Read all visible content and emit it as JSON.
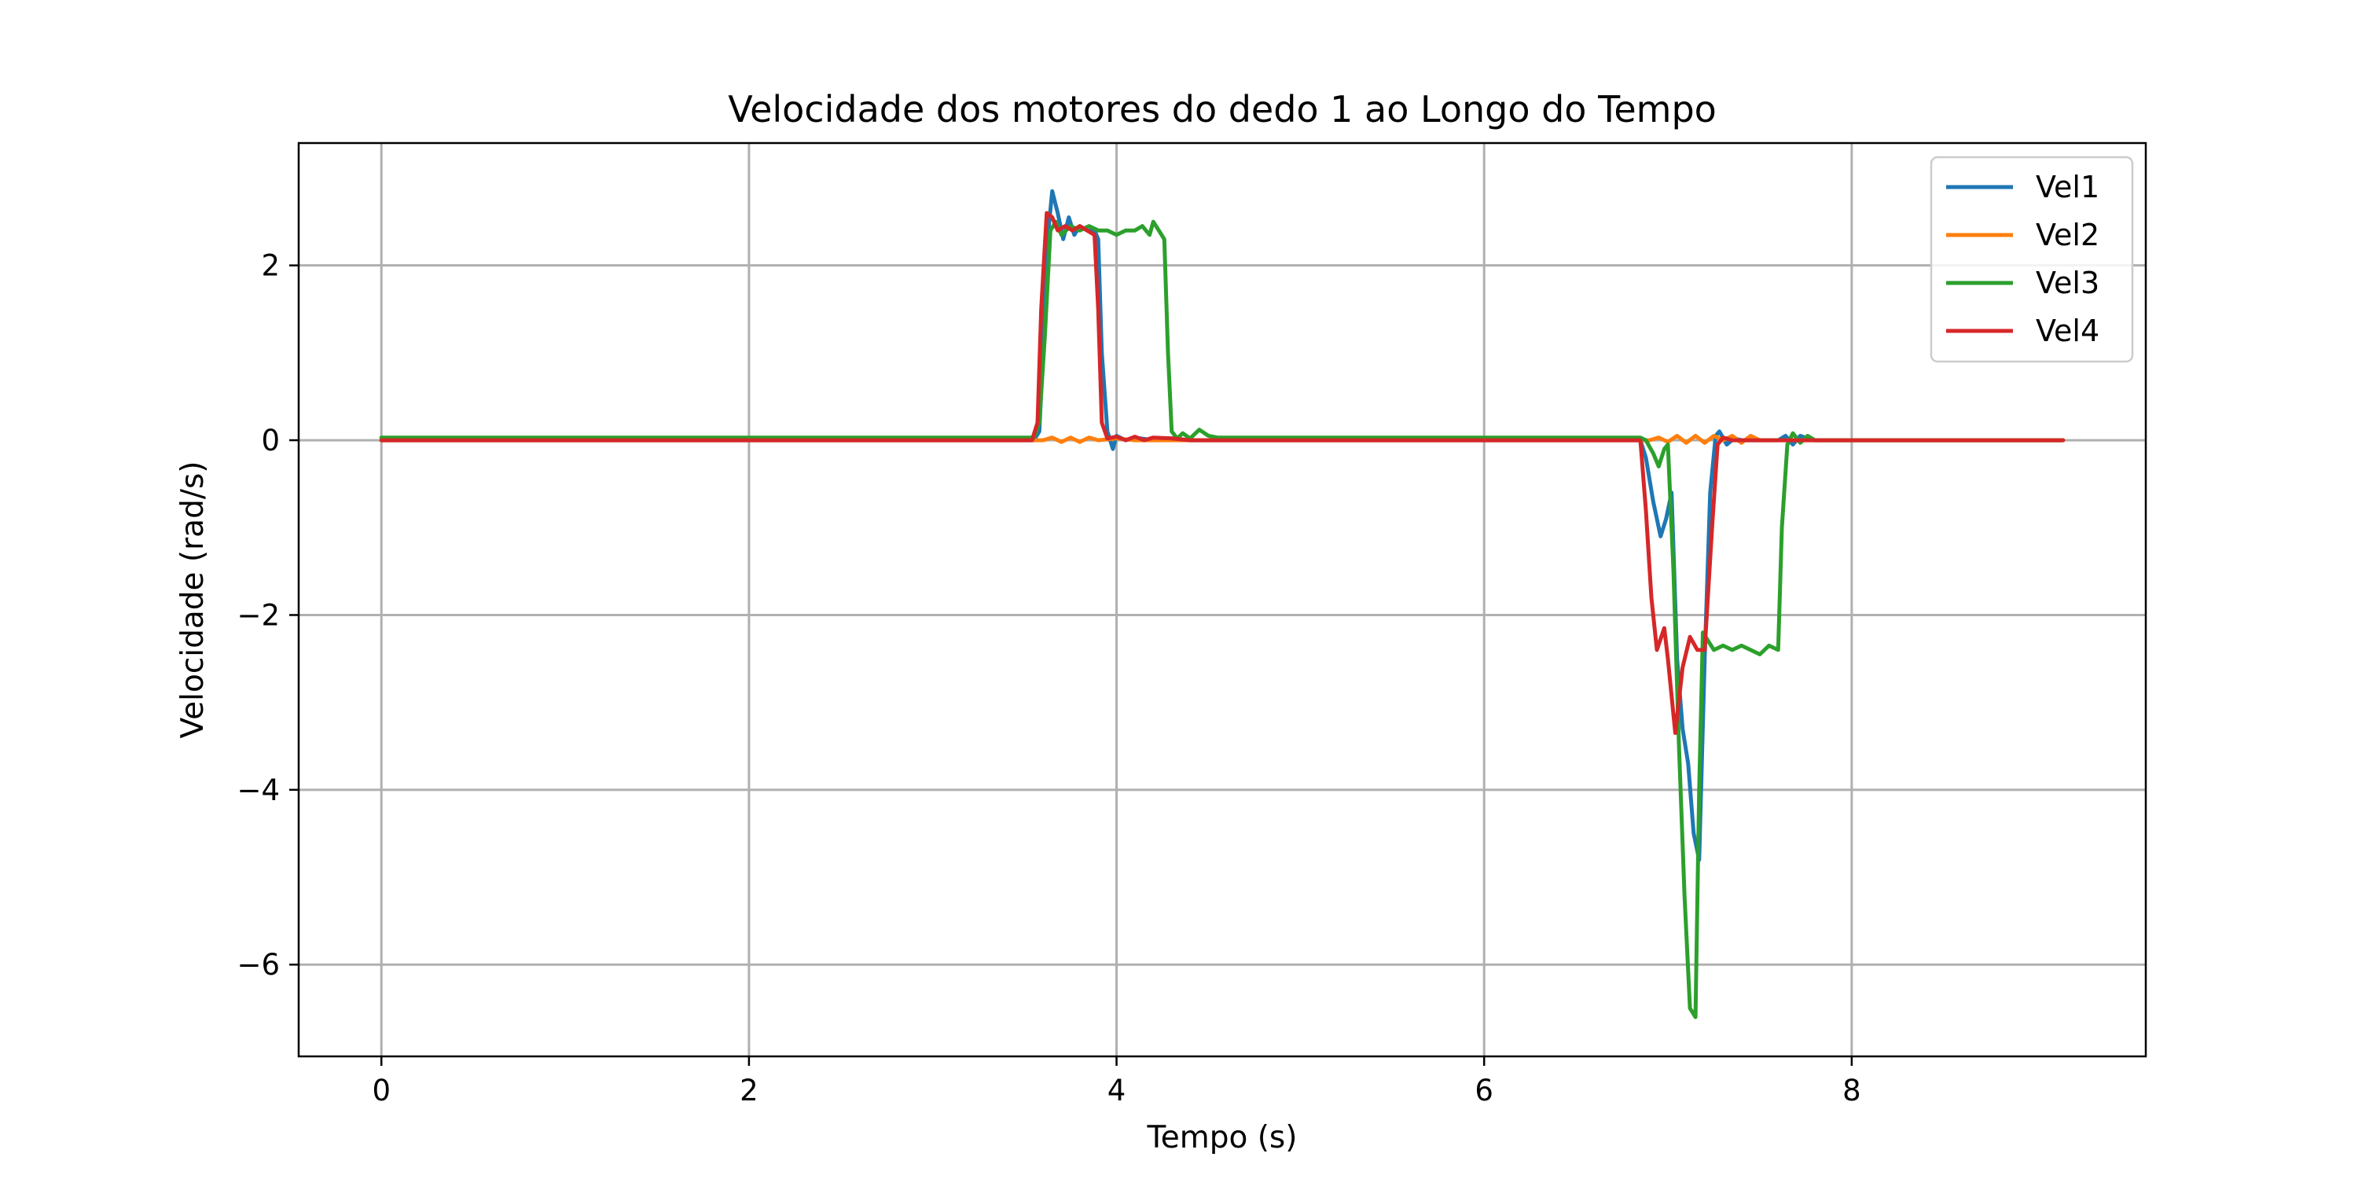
{
  "chart_data": {
    "type": "line",
    "title": "Velocidade dos motores do dedo 1 ao Longo do Tempo",
    "xlabel": "Tempo (s)",
    "ylabel": "Velocidade (rad/s)",
    "xlim": [
      -0.45,
      9.6
    ],
    "ylim": [
      -7.05,
      3.4
    ],
    "xticks": [
      0,
      2,
      4,
      6,
      8
    ],
    "yticks": [
      2,
      0,
      -2,
      -4,
      -6
    ],
    "xtick_labels": [
      "0",
      "2",
      "4",
      "6",
      "8"
    ],
    "ytick_labels": [
      "2",
      "0",
      "−2",
      "−4",
      "−6"
    ],
    "grid": true,
    "legend_position": "top-right",
    "series": [
      {
        "name": "Vel1",
        "color": "#1f77b4",
        "points": [
          [
            0,
            0
          ],
          [
            3.55,
            0
          ],
          [
            3.58,
            0.1
          ],
          [
            3.6,
            1.0
          ],
          [
            3.62,
            2.2
          ],
          [
            3.65,
            2.85
          ],
          [
            3.68,
            2.6
          ],
          [
            3.71,
            2.3
          ],
          [
            3.74,
            2.55
          ],
          [
            3.77,
            2.35
          ],
          [
            3.8,
            2.45
          ],
          [
            3.84,
            2.4
          ],
          [
            3.88,
            2.4
          ],
          [
            3.9,
            2.3
          ],
          [
            3.92,
            1.0
          ],
          [
            3.95,
            0.1
          ],
          [
            3.98,
            -0.1
          ],
          [
            4.0,
            0.05
          ],
          [
            4.05,
            0
          ],
          [
            4.1,
            0.03
          ],
          [
            4.2,
            0
          ],
          [
            4.3,
            0.02
          ],
          [
            4.4,
            0
          ],
          [
            6.85,
            0
          ],
          [
            6.88,
            -0.2
          ],
          [
            6.92,
            -0.7
          ],
          [
            6.96,
            -1.1
          ],
          [
            6.99,
            -0.9
          ],
          [
            7.02,
            -0.6
          ],
          [
            7.05,
            -2.5
          ],
          [
            7.08,
            -3.3
          ],
          [
            7.11,
            -3.7
          ],
          [
            7.14,
            -4.5
          ],
          [
            7.17,
            -4.8
          ],
          [
            7.2,
            -2.5
          ],
          [
            7.23,
            -0.6
          ],
          [
            7.26,
            0.05
          ],
          [
            7.28,
            0.1
          ],
          [
            7.32,
            -0.05
          ],
          [
            7.36,
            0.02
          ],
          [
            7.4,
            0
          ],
          [
            7.6,
            0
          ],
          [
            7.64,
            0.05
          ],
          [
            7.68,
            -0.05
          ],
          [
            7.72,
            0.05
          ],
          [
            7.76,
            0.02
          ],
          [
            7.8,
            0
          ],
          [
            9.15,
            0
          ]
        ]
      },
      {
        "name": "Vel2",
        "color": "#ff7f0e",
        "points": [
          [
            0,
            0
          ],
          [
            3.6,
            0
          ],
          [
            3.65,
            0.03
          ],
          [
            3.7,
            -0.02
          ],
          [
            3.75,
            0.03
          ],
          [
            3.8,
            -0.02
          ],
          [
            3.85,
            0.03
          ],
          [
            3.9,
            0
          ],
          [
            4.0,
            0.02
          ],
          [
            4.1,
            0
          ],
          [
            6.9,
            0
          ],
          [
            6.95,
            0.03
          ],
          [
            7.0,
            -0.02
          ],
          [
            7.05,
            0.05
          ],
          [
            7.1,
            -0.03
          ],
          [
            7.15,
            0.05
          ],
          [
            7.2,
            -0.03
          ],
          [
            7.25,
            0.05
          ],
          [
            7.3,
            0
          ],
          [
            7.35,
            0.05
          ],
          [
            7.4,
            -0.03
          ],
          [
            7.45,
            0.05
          ],
          [
            7.5,
            0
          ],
          [
            9.15,
            0
          ]
        ]
      },
      {
        "name": "Vel3",
        "color": "#2ca02c",
        "points": [
          [
            0,
            0.03
          ],
          [
            3.55,
            0.03
          ],
          [
            3.58,
            0.2
          ],
          [
            3.61,
            1.2
          ],
          [
            3.64,
            2.4
          ],
          [
            3.67,
            2.5
          ],
          [
            3.7,
            2.35
          ],
          [
            3.75,
            2.45
          ],
          [
            3.8,
            2.4
          ],
          [
            3.85,
            2.45
          ],
          [
            3.9,
            2.4
          ],
          [
            3.95,
            2.4
          ],
          [
            4.0,
            2.35
          ],
          [
            4.05,
            2.4
          ],
          [
            4.1,
            2.4
          ],
          [
            4.14,
            2.45
          ],
          [
            4.18,
            2.35
          ],
          [
            4.2,
            2.5
          ],
          [
            4.23,
            2.4
          ],
          [
            4.26,
            2.3
          ],
          [
            4.28,
            1.0
          ],
          [
            4.3,
            0.1
          ],
          [
            4.33,
            0.02
          ],
          [
            4.36,
            0.08
          ],
          [
            4.4,
            0.02
          ],
          [
            4.45,
            0.12
          ],
          [
            4.5,
            0.05
          ],
          [
            4.55,
            0.03
          ],
          [
            6.85,
            0.03
          ],
          [
            6.88,
            0
          ],
          [
            6.92,
            -0.15
          ],
          [
            6.95,
            -0.3
          ],
          [
            6.98,
            -0.1
          ],
          [
            7.0,
            -0.05
          ],
          [
            7.03,
            -1.5
          ],
          [
            7.06,
            -3.5
          ],
          [
            7.09,
            -5.2
          ],
          [
            7.12,
            -6.5
          ],
          [
            7.15,
            -6.6
          ],
          [
            7.17,
            -4.0
          ],
          [
            7.19,
            -2.2
          ],
          [
            7.22,
            -2.3
          ],
          [
            7.25,
            -2.4
          ],
          [
            7.3,
            -2.35
          ],
          [
            7.35,
            -2.4
          ],
          [
            7.4,
            -2.35
          ],
          [
            7.45,
            -2.4
          ],
          [
            7.5,
            -2.45
          ],
          [
            7.55,
            -2.35
          ],
          [
            7.6,
            -2.4
          ],
          [
            7.62,
            -1.0
          ],
          [
            7.65,
            -0.05
          ],
          [
            7.68,
            0.08
          ],
          [
            7.72,
            -0.03
          ],
          [
            7.76,
            0.05
          ],
          [
            7.8,
            0
          ],
          [
            9.15,
            0
          ]
        ]
      },
      {
        "name": "Vel4",
        "color": "#d62728",
        "points": [
          [
            0,
            0
          ],
          [
            3.54,
            0
          ],
          [
            3.57,
            0.2
          ],
          [
            3.59,
            1.5
          ],
          [
            3.62,
            2.6
          ],
          [
            3.65,
            2.55
          ],
          [
            3.68,
            2.4
          ],
          [
            3.72,
            2.45
          ],
          [
            3.76,
            2.4
          ],
          [
            3.8,
            2.45
          ],
          [
            3.84,
            2.4
          ],
          [
            3.88,
            2.35
          ],
          [
            3.9,
            1.5
          ],
          [
            3.92,
            0.2
          ],
          [
            3.95,
            0.02
          ],
          [
            4.0,
            0.04
          ],
          [
            4.05,
            0
          ],
          [
            4.1,
            0.04
          ],
          [
            4.15,
            0
          ],
          [
            4.2,
            0.03
          ],
          [
            4.3,
            0.02
          ],
          [
            4.4,
            0
          ],
          [
            6.85,
            0
          ],
          [
            6.88,
            -0.8
          ],
          [
            6.91,
            -1.8
          ],
          [
            6.94,
            -2.4
          ],
          [
            6.98,
            -2.15
          ],
          [
            7.0,
            -2.5
          ],
          [
            7.04,
            -3.35
          ],
          [
            7.08,
            -2.6
          ],
          [
            7.12,
            -2.25
          ],
          [
            7.16,
            -2.4
          ],
          [
            7.2,
            -2.4
          ],
          [
            7.24,
            -1.0
          ],
          [
            7.27,
            -0.05
          ],
          [
            7.3,
            0.03
          ],
          [
            7.35,
            0
          ],
          [
            9.15,
            0
          ]
        ]
      }
    ]
  }
}
